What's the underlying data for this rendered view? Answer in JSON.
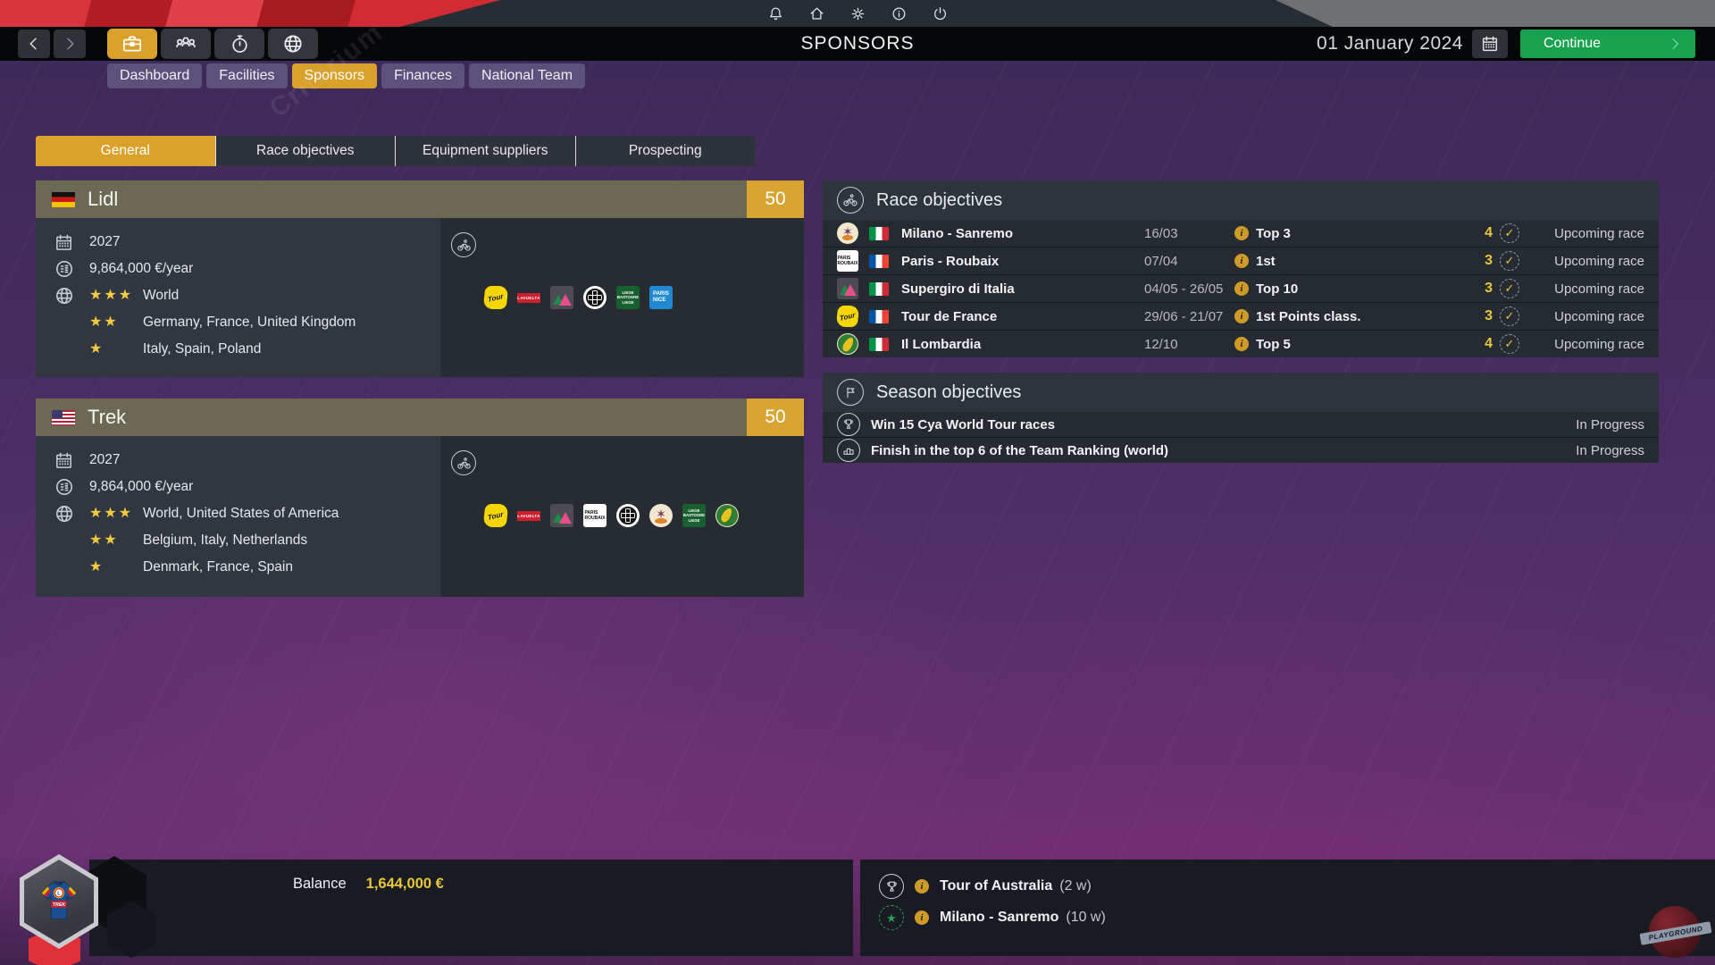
{
  "watermark_text": "Criterium",
  "brand_watermark": "PLAYGROUND",
  "nav": {
    "title": "SPONSORS",
    "date": "01 January 2024",
    "continue_label": "Continue"
  },
  "subtabs": [
    {
      "label": "Dashboard"
    },
    {
      "label": "Facilities"
    },
    {
      "label": "Sponsors"
    },
    {
      "label": "Finances"
    },
    {
      "label": "National Team"
    }
  ],
  "content_tabs": [
    {
      "label": "General"
    },
    {
      "label": "Race objectives"
    },
    {
      "label": "Equipment suppliers"
    },
    {
      "label": "Prospecting"
    }
  ],
  "sponsors": [
    {
      "name": "Lidl",
      "flag": "de",
      "rating": "50",
      "contract_end": "2027",
      "amount": "9,864,000 €/year",
      "regions": [
        {
          "stars": "★★★",
          "label": "World"
        },
        {
          "stars": "★★",
          "label": "Germany, France, United Kingdom"
        },
        {
          "stars": "★",
          "label": "Italy, Spain, Poland"
        }
      ],
      "race_logos": [
        "tour-de-france",
        "la-vuelta",
        "giro-d-italia",
        "roubaix-cobble",
        "liege",
        "paris-nice"
      ]
    },
    {
      "name": "Trek",
      "flag": "us",
      "rating": "50",
      "contract_end": "2027",
      "amount": "9,864,000 €/year",
      "regions": [
        {
          "stars": "★★★",
          "label": "World, United States of America"
        },
        {
          "stars": "★★",
          "label": "Belgium, Italy, Netherlands"
        },
        {
          "stars": "★",
          "label": "Denmark, France, Spain"
        }
      ],
      "race_logos": [
        "tour-de-france",
        "la-vuelta",
        "giro-d-italia",
        "paris-roubaix",
        "roubaix-cobble",
        "milano-sanremo",
        "liege",
        "il-lombardia"
      ]
    }
  ],
  "race_objectives": {
    "title": "Race objectives",
    "rows": [
      {
        "logo": "milano-sanremo",
        "flag": "it",
        "race": "Milano - Sanremo",
        "date": "16/03",
        "objective": "Top 3",
        "count": "4",
        "status": "Upcoming race"
      },
      {
        "logo": "paris-roubaix",
        "flag": "fr",
        "race": "Paris - Roubaix",
        "date": "07/04",
        "objective": "1st",
        "count": "3",
        "status": "Upcoming race"
      },
      {
        "logo": "giro-d-italia",
        "flag": "it",
        "race": "Supergiro di Italia",
        "date": "04/05 - 26/05",
        "objective": "Top 10",
        "count": "3",
        "status": "Upcoming race"
      },
      {
        "logo": "tour-de-france",
        "flag": "fr",
        "race": "Tour de France",
        "date": "29/06 - 21/07",
        "objective": "1st Points class.",
        "count": "3",
        "status": "Upcoming race"
      },
      {
        "logo": "il-lombardia",
        "flag": "it",
        "race": "Il Lombardia",
        "date": "12/10",
        "objective": "Top 5",
        "count": "4",
        "status": "Upcoming race"
      }
    ]
  },
  "season_objectives": {
    "title": "Season objectives",
    "rows": [
      {
        "label": "Win 15 Cya World Tour races",
        "status": "In Progress"
      },
      {
        "label": "Finish in the top 6 of the Team Ranking (world)",
        "status": "In Progress"
      }
    ]
  },
  "footer": {
    "balance_label": "Balance",
    "balance_value": "1,644,000 €",
    "achievements": [
      {
        "name": "Tour of Australia",
        "detail": "(2 w)"
      },
      {
        "name": "Milano - Sanremo",
        "detail": "(10 w)"
      }
    ]
  }
}
